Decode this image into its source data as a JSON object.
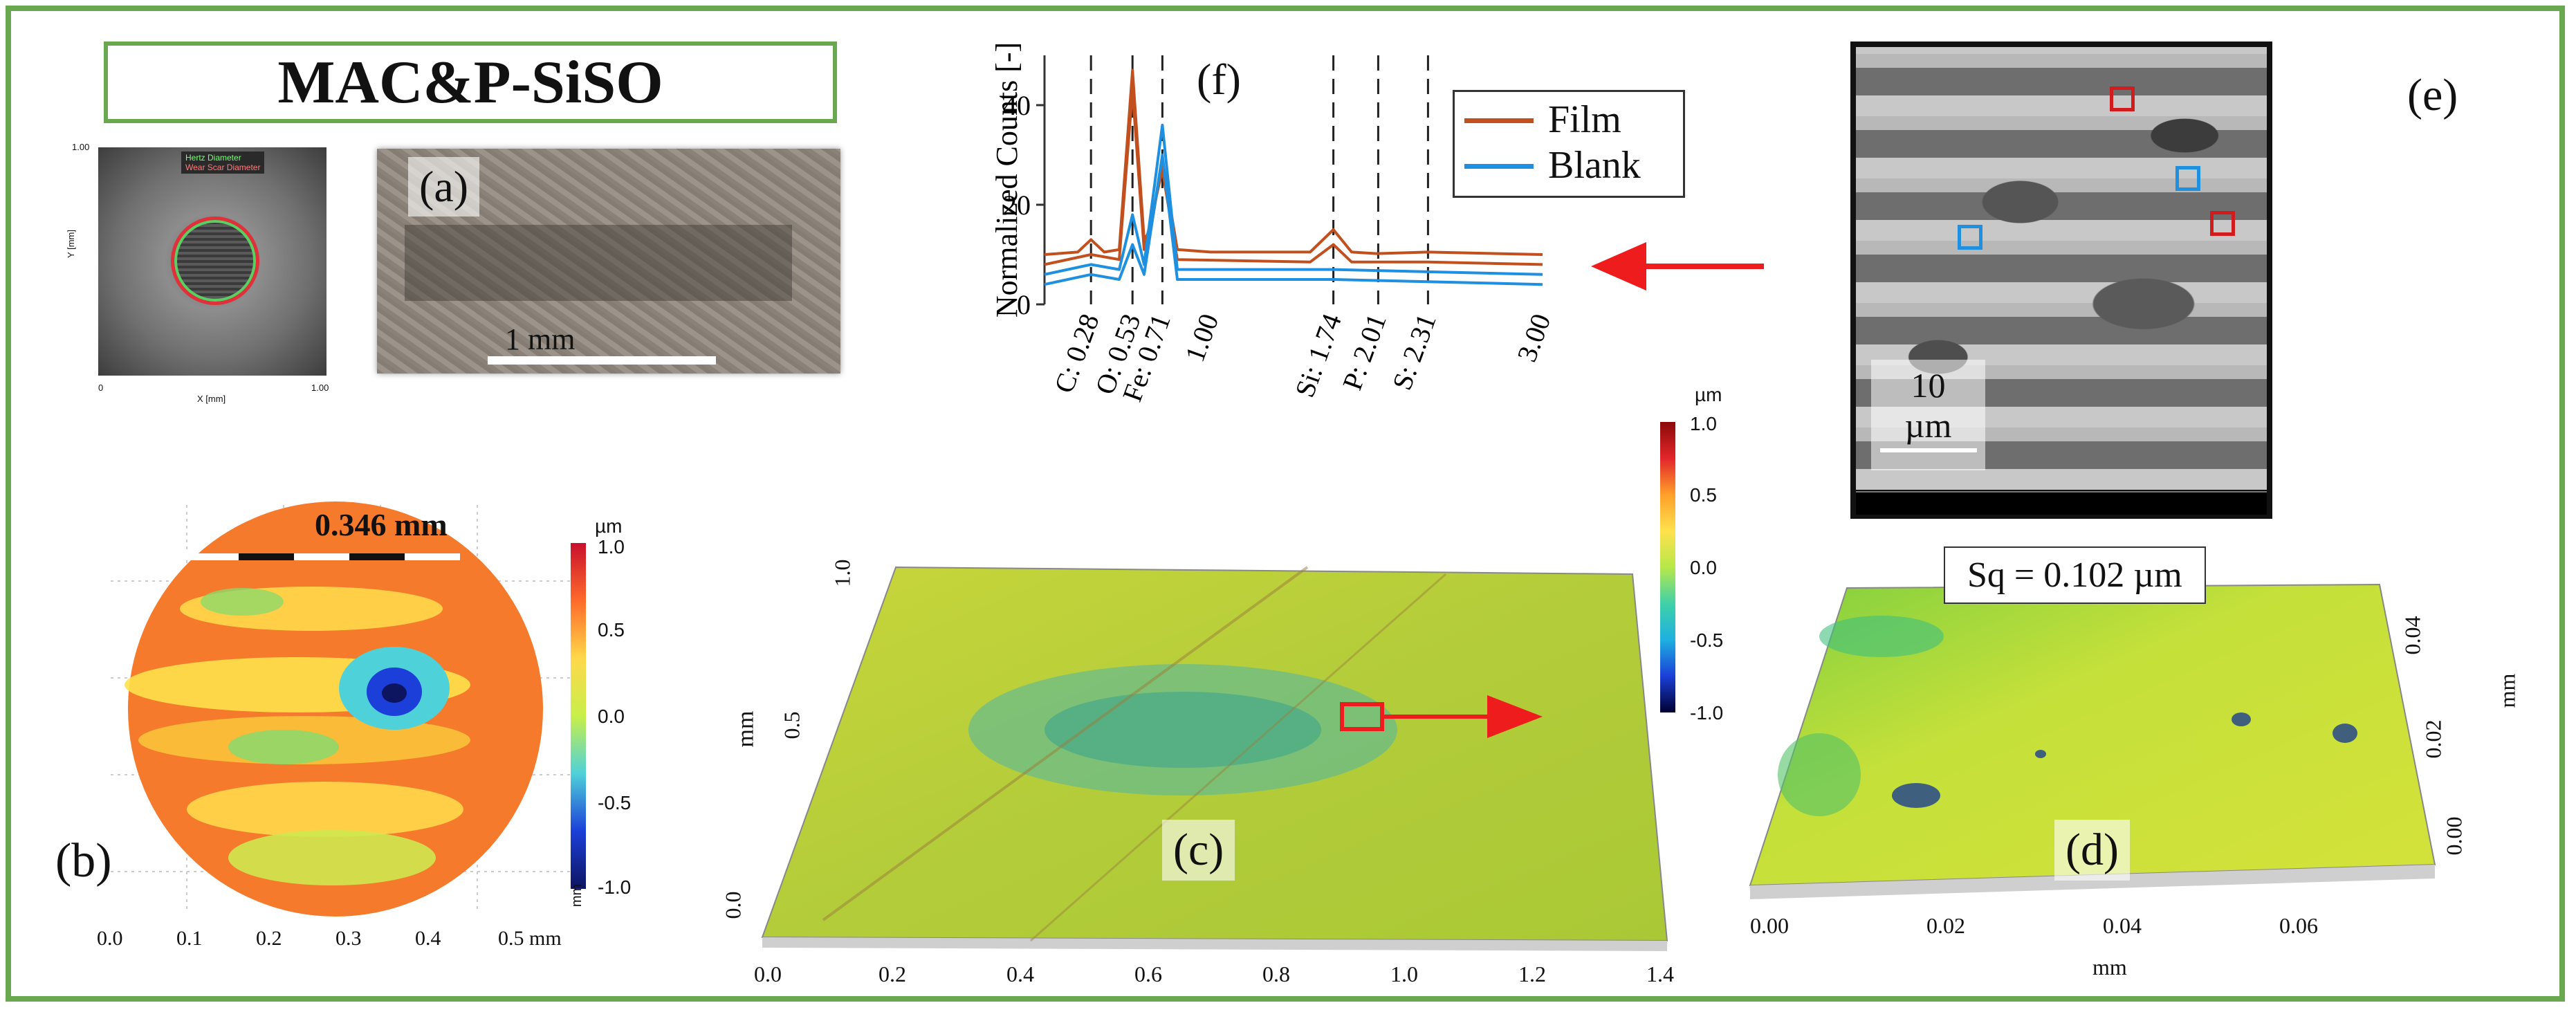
{
  "title": "MAC&P-SiSO",
  "panel_labels": {
    "a": "(a)",
    "b": "(b)",
    "c": "(c)",
    "d": "(d)",
    "e": "(e)",
    "f": "(f)"
  },
  "colors": {
    "frame": "#6aa84f",
    "film": "#c1501e",
    "blank": "#1f8fe0",
    "arrow": "#ee1c1c"
  },
  "panel_wear_map": {
    "legend": [
      "Hertz Diameter",
      "Wear Scar Diameter"
    ],
    "ylabel": "Y [mm]",
    "xlabel": "X [mm]",
    "ytick_top": "1.00",
    "xtick_left": "0",
    "xtick_right": "1.00"
  },
  "panel_a": {
    "scalebar": "1 mm"
  },
  "panel_b": {
    "measure": "0.346 mm",
    "colorbar": {
      "unit": "µm",
      "ticks": [
        "1.0",
        "0.5",
        "0.0",
        "-0.5",
        "-1.0"
      ],
      "side": "mm"
    },
    "xticks": [
      "0.0",
      "0.1",
      "0.2",
      "0.3",
      "0.4",
      "0.5 mm"
    ]
  },
  "panel_c": {
    "yticks": [
      "1.0",
      "0.5",
      "0.0"
    ],
    "yunit": "mm",
    "xticks": [
      "0.0",
      "0.2",
      "0.4",
      "0.6",
      "0.8",
      "1.0",
      "1.2",
      "1.4"
    ]
  },
  "colorbar_center": {
    "unit": "µm",
    "ticks": [
      "1.0",
      "0.5",
      "0.0",
      "-0.5",
      "-1.0"
    ]
  },
  "panel_d": {
    "sq": "Sq = 0.102 µm",
    "xticks": [
      "0.00",
      "0.02",
      "0.04",
      "0.06"
    ],
    "xunit": "mm",
    "yticks": [
      "0.04",
      "0.02",
      "0.00"
    ],
    "yunit": "mm"
  },
  "panel_e": {
    "scalebar_value": "10",
    "scalebar_unit": "µm"
  },
  "chart_data": {
    "type": "line",
    "title": "(f)",
    "xlabel": "",
    "ylabel": "Normalized Counts [-]",
    "ylim": [
      0,
      50
    ],
    "xlim": [
      0,
      3.0
    ],
    "yticks": [
      0,
      20,
      40
    ],
    "xticks_top": [
      "1.00",
      "3.00"
    ],
    "peak_lines": [
      {
        "label": "C: 0.28",
        "x": 0.28
      },
      {
        "label": "O: 0.53",
        "x": 0.53
      },
      {
        "label": "Fe: 0.71",
        "x": 0.71
      },
      {
        "label": "Si: 1.74",
        "x": 1.74
      },
      {
        "label": "P: 2.01",
        "x": 2.01
      },
      {
        "label": "S: 2.31",
        "x": 2.31
      }
    ],
    "series": [
      {
        "name": "Film",
        "color": "#c1501e",
        "points": [
          [
            0,
            10
          ],
          [
            0.2,
            10.5
          ],
          [
            0.28,
            13
          ],
          [
            0.36,
            10.5
          ],
          [
            0.45,
            11
          ],
          [
            0.53,
            47
          ],
          [
            0.6,
            13
          ],
          [
            0.64,
            15
          ],
          [
            0.71,
            29
          ],
          [
            0.8,
            11
          ],
          [
            1.0,
            10.5
          ],
          [
            1.6,
            10.5
          ],
          [
            1.74,
            15
          ],
          [
            1.85,
            10.5
          ],
          [
            2.0,
            10.2
          ],
          [
            2.31,
            10.5
          ],
          [
            3.0,
            10
          ]
        ]
      },
      {
        "name": "Film",
        "color": "#c1501e",
        "points": [
          [
            0,
            8
          ],
          [
            0.28,
            10
          ],
          [
            0.45,
            9
          ],
          [
            0.53,
            43
          ],
          [
            0.6,
            11
          ],
          [
            0.71,
            27
          ],
          [
            0.8,
            9
          ],
          [
            1.6,
            8.5
          ],
          [
            1.74,
            12
          ],
          [
            1.85,
            8.5
          ],
          [
            2.31,
            8.5
          ],
          [
            3.0,
            8
          ]
        ]
      },
      {
        "name": "Blank",
        "color": "#1f8fe0",
        "points": [
          [
            0,
            6
          ],
          [
            0.28,
            8
          ],
          [
            0.45,
            7
          ],
          [
            0.53,
            18
          ],
          [
            0.6,
            8
          ],
          [
            0.71,
            36
          ],
          [
            0.8,
            7
          ],
          [
            1.74,
            7
          ],
          [
            3.0,
            6
          ]
        ]
      },
      {
        "name": "Blank",
        "color": "#1f8fe0",
        "points": [
          [
            0,
            4
          ],
          [
            0.28,
            6
          ],
          [
            0.45,
            5
          ],
          [
            0.53,
            12
          ],
          [
            0.6,
            6
          ],
          [
            0.71,
            30
          ],
          [
            0.8,
            5
          ],
          [
            1.74,
            5
          ],
          [
            3.0,
            4
          ]
        ]
      }
    ],
    "legend": [
      "Film",
      "Blank"
    ]
  }
}
